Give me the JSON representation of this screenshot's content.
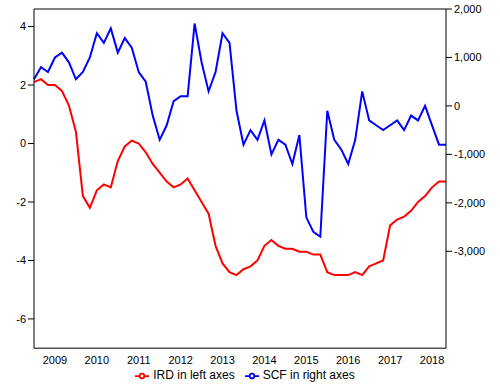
{
  "chart_data": {
    "type": "line",
    "categories": [
      null,
      null,
      null,
      "2009",
      null,
      null,
      null,
      null,
      null,
      "2010",
      null,
      null,
      null,
      null,
      null,
      "2011",
      null,
      null,
      null,
      null,
      null,
      "2012",
      null,
      null,
      null,
      null,
      null,
      "2013",
      null,
      null,
      null,
      null,
      null,
      "2014",
      null,
      null,
      null,
      null,
      null,
      "2015",
      null,
      null,
      null,
      null,
      null,
      "2016",
      null,
      null,
      null,
      null,
      null,
      "2017",
      null,
      null,
      null,
      null,
      null,
      "2018",
      null,
      null
    ],
    "series": [
      {
        "name": "SCF in right axes",
        "color": "#0000ff",
        "axis": "y2",
        "values": [
          550,
          800,
          700,
          1000,
          1100,
          900,
          550,
          700,
          1000,
          1500,
          1300,
          1600,
          1100,
          1400,
          1200,
          700,
          500,
          -200,
          -700,
          -400,
          100,
          200,
          200,
          1700,
          900,
          300,
          700,
          1500,
          1300,
          -100,
          -800,
          -500,
          -700,
          -300,
          -1000,
          -700,
          -800,
          -1200,
          -600,
          -2300,
          -2600,
          -2700,
          -100,
          -700,
          -900,
          -1200,
          -700,
          300,
          -300,
          -400,
          -500,
          -400,
          -300,
          -500,
          -200,
          -300,
          0,
          -400,
          -800,
          -800
        ]
      },
      {
        "name": "IRD in left axes",
        "color": "#ff0000",
        "values": [
          2.1,
          2.2,
          2.0,
          2.0,
          1.8,
          1.3,
          0.4,
          -1.8,
          -2.2,
          -1.6,
          -1.4,
          -1.5,
          -0.6,
          -0.1,
          0.1,
          0,
          -0.3,
          -0.7,
          -1.0,
          -1.3,
          -1.5,
          -1.4,
          -1.2,
          -1.6,
          -2.0,
          -2.4,
          -3.5,
          -4.1,
          -4.4,
          -4.5,
          -4.3,
          -4.2,
          -4.0,
          -3.5,
          -3.3,
          -3.5,
          -3.6,
          -3.6,
          -3.7,
          -3.7,
          -3.8,
          -3.8,
          -4.4,
          -4.5,
          -4.5,
          -4.5,
          -4.4,
          -4.5,
          -4.2,
          -4.1,
          -4.0,
          -2.8,
          -2.6,
          -2.5,
          -2.3,
          -2.0,
          -1.8,
          -1.5,
          -1.3,
          -1.3
        ]
      }
    ],
    "ylim": [
      -7,
      4.6
    ],
    "yticks": [
      -6,
      -4,
      -2,
      0,
      2,
      4
    ],
    "y2lim": [
      -5000,
      2000
    ],
    "y2ticks": [
      {
        "value": -3000,
        "label": "-3,000"
      },
      {
        "value": -2000,
        "label": "-2,000"
      },
      {
        "value": -1000,
        "label": "-1,000"
      },
      0,
      {
        "value": 1000,
        "label": "1,000"
      },
      {
        "value": 2000,
        "label": "2,000"
      }
    ],
    "grid": false,
    "legend": "bottom"
  }
}
